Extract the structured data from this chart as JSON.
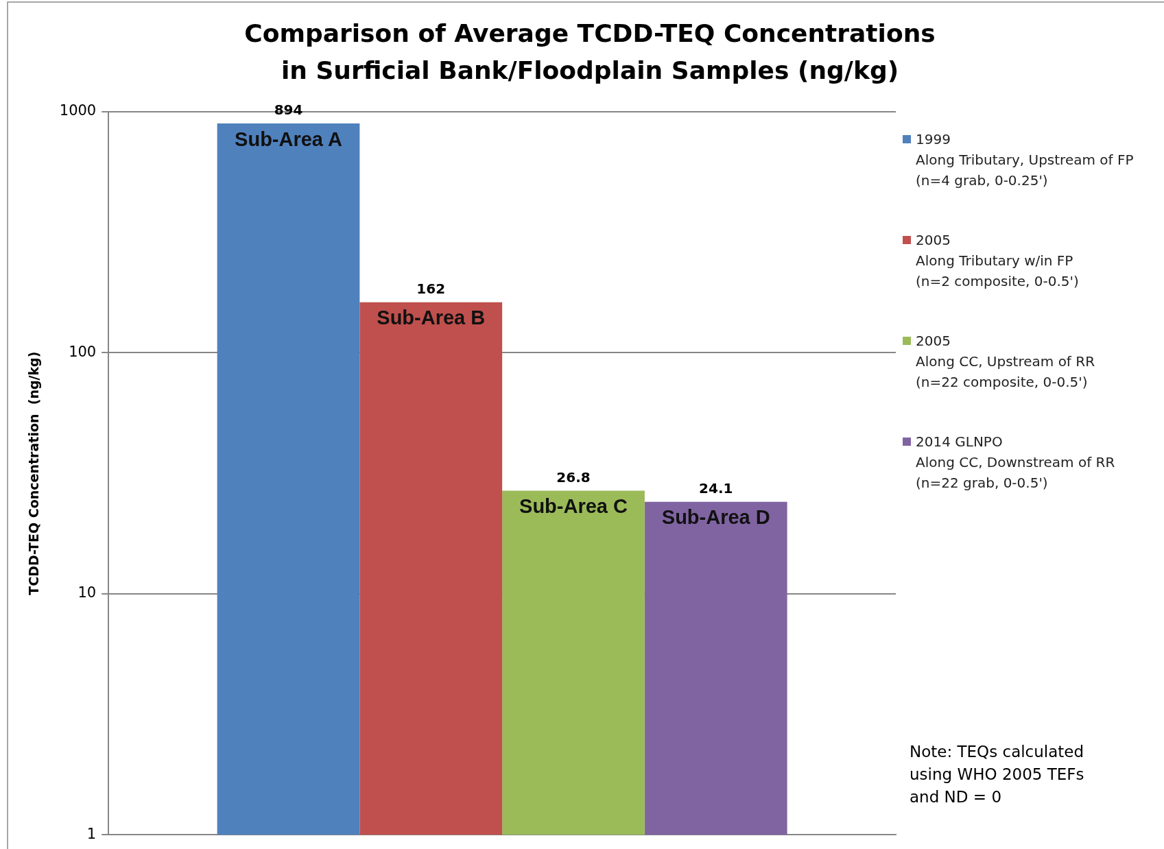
{
  "chart_data": {
    "type": "bar",
    "title": "Comparison of Average TCDD-TEQ Concentrations in Surficial Bank/Floodplain Samples (ng/kg)",
    "ylabel": "TCDD-TEQ Concentration  (ng/kg)",
    "categories": [
      null
    ],
    "series": [
      {
        "name": "1999\nAlong Tributary, Upstream of FP\n(n=4 grab, 0-0.25')",
        "color": "#4f81bd",
        "values": [
          894
        ]
      },
      {
        "name": "2005\nAlong Tributary w/in FP\n(n=2 composite, 0-0.5')",
        "color": "#c0504d",
        "values": [
          162
        ]
      },
      {
        "name": "2005\nAlong CC, Upstream of RR\n(n=22 composite, 0-0.5')",
        "color": "#9bbb59",
        "values": [
          26.8
        ]
      },
      {
        "name": "2014 GLNPO\nAlong CC, Downstream of RR\n(n=22 grab, 0-0.5')",
        "color": "#8064a2",
        "values": [
          24.1
        ]
      }
    ],
    "log": "y",
    "ylim": [
      1,
      1000
    ],
    "yticks": [
      1,
      10,
      100,
      1000
    ],
    "grid": "y",
    "legend": "right",
    "data_labels": true,
    "annotations": [
      "Sub-Area A",
      "Sub-Area B",
      "Sub-Area C",
      "Sub-Area D",
      "Note: TEQs calculated using WHO 2005 TEFs and ND = 0"
    ]
  }
}
